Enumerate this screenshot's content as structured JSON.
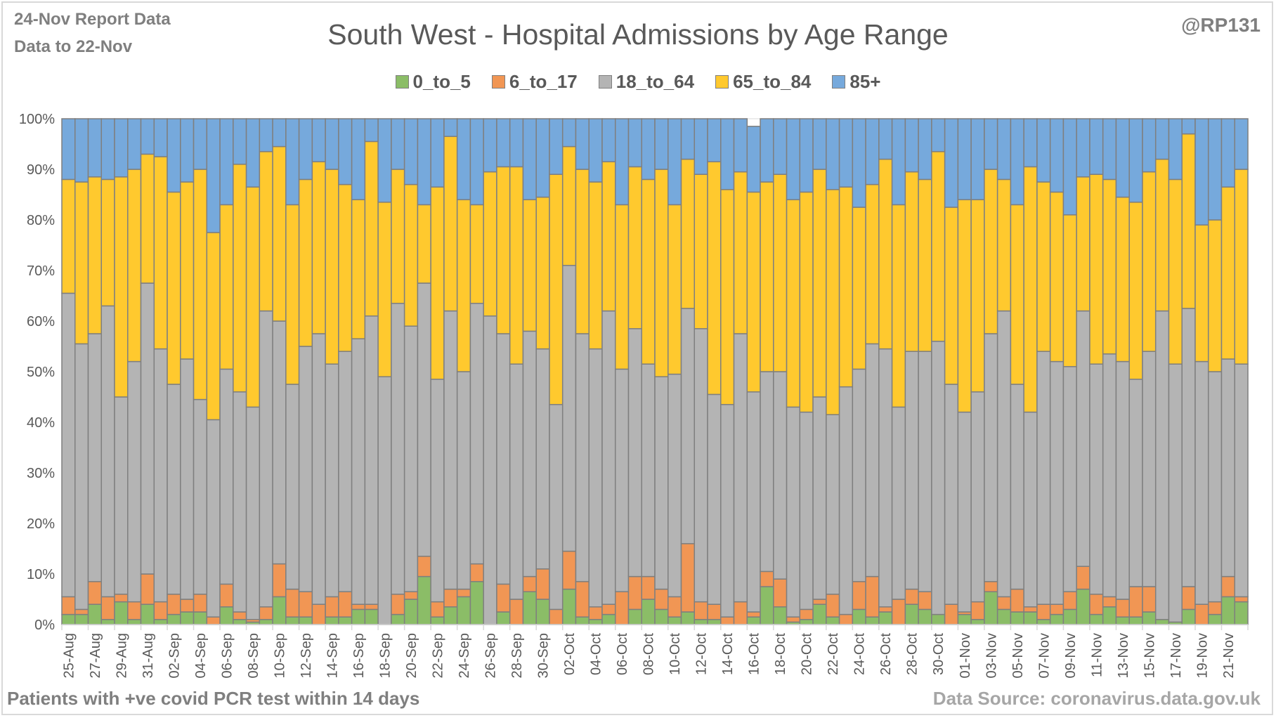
{
  "header": {
    "report_line": "24-Nov Report Data",
    "data_line": "Data to 22-Nov",
    "handle": "@RP131"
  },
  "footer": {
    "left": "Patients with  +ve covid PCR test within 14 days",
    "right": "Data Source: coronavirus.data.gov.uk"
  },
  "chart_data": {
    "type": "bar",
    "stacked": "percent",
    "title": "South West - Hospital Admissions by Age Range",
    "xlabel": "",
    "ylabel": "",
    "ylim": [
      0,
      100
    ],
    "yticks": [
      "0%",
      "10%",
      "20%",
      "30%",
      "40%",
      "50%",
      "60%",
      "70%",
      "80%",
      "90%",
      "100%"
    ],
    "grid": true,
    "legend_position": "top-center",
    "x_tick_labels": [
      "25-Aug",
      "27-Aug",
      "29-Aug",
      "31-Aug",
      "02-Sep",
      "04-Sep",
      "06-Sep",
      "08-Sep",
      "10-Sep",
      "12-Sep",
      "14-Sep",
      "16-Sep",
      "18-Sep",
      "20-Sep",
      "22-Sep",
      "24-Sep",
      "26-Sep",
      "28-Sep",
      "30-Sep",
      "02-Oct",
      "04-Oct",
      "06-Oct",
      "08-Oct",
      "10-Oct",
      "12-Oct",
      "14-Oct",
      "16-Oct",
      "18-Oct",
      "20-Oct",
      "22-Oct",
      "24-Oct",
      "26-Oct",
      "28-Oct",
      "30-Oct",
      "01-Nov",
      "03-Nov",
      "05-Nov",
      "07-Nov",
      "09-Nov",
      "11-Nov",
      "13-Nov",
      "15-Nov",
      "17-Nov",
      "19-Nov",
      "21-Nov"
    ],
    "categories": [
      "25-Aug",
      "26-Aug",
      "27-Aug",
      "28-Aug",
      "29-Aug",
      "30-Aug",
      "31-Aug",
      "01-Sep",
      "02-Sep",
      "03-Sep",
      "04-Sep",
      "05-Sep",
      "06-Sep",
      "07-Sep",
      "08-Sep",
      "09-Sep",
      "10-Sep",
      "11-Sep",
      "12-Sep",
      "13-Sep",
      "14-Sep",
      "15-Sep",
      "16-Sep",
      "17-Sep",
      "18-Sep",
      "19-Sep",
      "20-Sep",
      "21-Sep",
      "22-Sep",
      "23-Sep",
      "24-Sep",
      "25-Sep",
      "26-Sep",
      "27-Sep",
      "28-Sep",
      "29-Sep",
      "30-Sep",
      "01-Oct",
      "02-Oct",
      "03-Oct",
      "04-Oct",
      "05-Oct",
      "06-Oct",
      "07-Oct",
      "08-Oct",
      "09-Oct",
      "10-Oct",
      "11-Oct",
      "12-Oct",
      "13-Oct",
      "14-Oct",
      "15-Oct",
      "16-Oct",
      "17-Oct",
      "18-Oct",
      "19-Oct",
      "20-Oct",
      "21-Oct",
      "22-Oct",
      "23-Oct",
      "24-Oct",
      "25-Oct",
      "26-Oct",
      "27-Oct",
      "28-Oct",
      "29-Oct",
      "30-Oct",
      "31-Oct",
      "01-Nov",
      "02-Nov",
      "03-Nov",
      "04-Nov",
      "05-Nov",
      "06-Nov",
      "07-Nov",
      "08-Nov",
      "09-Nov",
      "10-Nov",
      "11-Nov",
      "12-Nov",
      "13-Nov",
      "14-Nov",
      "15-Nov",
      "16-Nov",
      "17-Nov",
      "18-Nov",
      "19-Nov",
      "20-Nov",
      "21-Nov",
      "22-Nov"
    ],
    "series": [
      {
        "name": "0_to_5",
        "color": "#8bbd67",
        "values": [
          2,
          2,
          4,
          1,
          4.5,
          1,
          4,
          1,
          2,
          2.5,
          2.5,
          0,
          3.5,
          1,
          0.5,
          1,
          5.5,
          1.5,
          1.5,
          0,
          1.5,
          1.5,
          3,
          3,
          0,
          2,
          5,
          9.5,
          1.5,
          3.5,
          5.5,
          8.5,
          0,
          2.5,
          0,
          6.5,
          5,
          0,
          7,
          1.5,
          1,
          2,
          0,
          3,
          5,
          3,
          1.5,
          2.5,
          1,
          1,
          0,
          0,
          1.5,
          7.5,
          3.5,
          0.5,
          1,
          4,
          1.5,
          0,
          3,
          1.5,
          2.5,
          0,
          4,
          3,
          2,
          0,
          2,
          1,
          6.5,
          3,
          2.5,
          2.5,
          1,
          2,
          3,
          7,
          2,
          3.5,
          1.5,
          1.5,
          2.5,
          1,
          0.5,
          3,
          0,
          2,
          5.5,
          4.5
        ]
      },
      {
        "name": "6_to_17",
        "color": "#f19654",
        "values": [
          3.5,
          1,
          4.5,
          4.5,
          1.5,
          3.5,
          6,
          3.5,
          4,
          2.5,
          3.5,
          1.5,
          4.5,
          1.5,
          0.5,
          2.5,
          6.5,
          5.5,
          5,
          4,
          4,
          5,
          1,
          1,
          0,
          4,
          1.5,
          4,
          3,
          3.5,
          1.5,
          3.5,
          0,
          5.5,
          5,
          3,
          6,
          3,
          7.5,
          7,
          2.5,
          2,
          6.5,
          6.5,
          4.5,
          4,
          4,
          13.5,
          3.5,
          3,
          1.5,
          4.5,
          1,
          3,
          5.5,
          1,
          2,
          1,
          4.5,
          2,
          5.5,
          8,
          1,
          5,
          3,
          3.5,
          0,
          4,
          0.5,
          3.5,
          2,
          2.5,
          4.5,
          1,
          3,
          2,
          3.5,
          4.5,
          4,
          2,
          3.5,
          6,
          5,
          0,
          0,
          4.5,
          4,
          2.5,
          4,
          1
        ]
      },
      {
        "name": "18_to_64",
        "color": "#b4b4b4",
        "values": [
          60,
          52.5,
          49,
          57.5,
          39,
          47.5,
          57.5,
          50,
          41.5,
          47.5,
          38.5,
          39,
          42.5,
          43.5,
          42,
          58.5,
          48,
          40.5,
          48.5,
          53.5,
          46,
          47.5,
          52.5,
          57,
          49,
          57.5,
          52.5,
          54,
          44,
          55,
          43,
          51.5,
          61,
          49.5,
          46.5,
          48.5,
          43.5,
          40.5,
          56.5,
          49,
          51,
          58,
          44,
          49,
          42,
          42,
          44,
          46.5,
          54,
          41.5,
          42,
          53,
          43.5,
          39.5,
          41,
          41.5,
          39,
          40,
          35.5,
          45,
          42,
          46,
          51,
          38,
          47,
          47.5,
          54,
          43.5,
          39.5,
          41.5,
          49,
          56.5,
          40.5,
          38.5,
          50,
          48,
          44.5,
          50.5,
          45.5,
          48,
          47,
          41,
          46.5,
          61,
          51,
          55,
          48,
          45.5,
          43,
          46
        ]
      },
      {
        "name": "65_to_84",
        "color": "#ffc92e",
        "values": [
          22.5,
          32,
          31,
          25,
          43.5,
          38,
          25.5,
          38,
          38,
          35,
          45.5,
          37,
          32.5,
          45,
          43.5,
          31.5,
          34.5,
          35.5,
          33,
          34,
          38.5,
          33,
          27.5,
          34.5,
          34.5,
          26.5,
          28,
          15.5,
          38,
          34.5,
          34,
          19.5,
          28.5,
          33,
          39,
          26,
          30,
          45.5,
          23.5,
          32.5,
          33,
          29.5,
          32.5,
          32,
          36.5,
          41,
          33.5,
          29.5,
          30.5,
          46,
          42.5,
          32,
          39.5,
          37.5,
          39,
          41,
          43.5,
          45,
          44.5,
          39.5,
          32,
          31.5,
          37.5,
          40,
          35.5,
          34,
          37.5,
          35,
          42,
          38,
          32.5,
          26,
          35.5,
          48.5,
          33.5,
          33.5,
          30,
          26.5,
          37.5,
          34.5,
          32.5,
          35,
          35.5,
          30,
          36.5,
          34.5,
          27,
          30,
          34,
          38.5
        ]
      },
      {
        "name": "85+",
        "color": "#76a9dc",
        "values": [
          12,
          12.5,
          11.5,
          12,
          11.5,
          10,
          7,
          7.5,
          14.5,
          12.5,
          10,
          22.5,
          17,
          9,
          13.5,
          6.5,
          5.5,
          17,
          12,
          8.5,
          10,
          13,
          16,
          4.5,
          16.5,
          10,
          13,
          17,
          13.5,
          3.5,
          16,
          17,
          10.5,
          9.5,
          9.5,
          16,
          15.5,
          11,
          5.5,
          10,
          12.5,
          8.5,
          17,
          9.5,
          12,
          10,
          17,
          8,
          11,
          8.5,
          14,
          10.5,
          13,
          12.5,
          11,
          16,
          14.5,
          10,
          14,
          13.5,
          17.5,
          13,
          8,
          17,
          10.5,
          12,
          6.5,
          17.5,
          16,
          16,
          10,
          12,
          17,
          9.5,
          12.5,
          14.5,
          19,
          11.5,
          11,
          12,
          15.5,
          16.5,
          10.5,
          8,
          12,
          3,
          21,
          20,
          13.5,
          10
        ]
      }
    ]
  }
}
